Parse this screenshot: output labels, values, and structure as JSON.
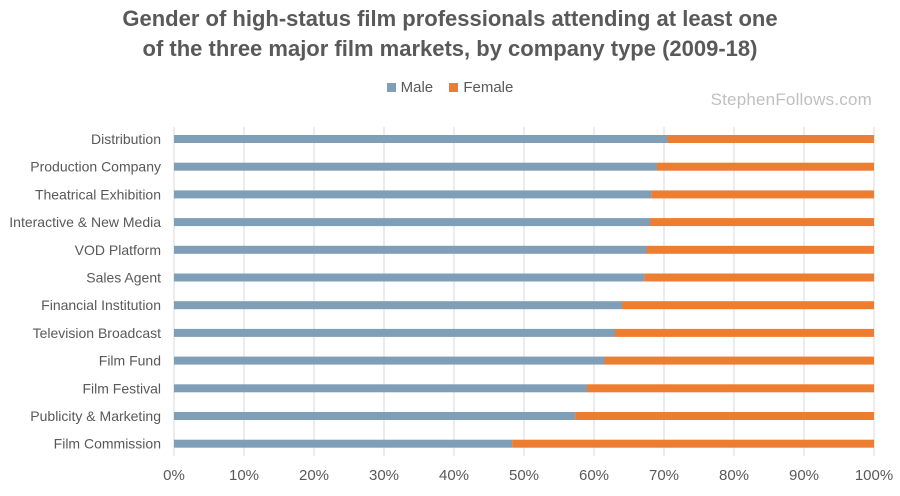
{
  "title_line1": "Gender of high-status film professionals attending at least one",
  "title_line2": "of the three major film markets, by company type (2009-18)",
  "watermark": "StephenFollows.com",
  "colors": {
    "male": "#7f9eb8",
    "female": "#ed7d31",
    "text": "#595959",
    "grid": "#d9d9d9"
  },
  "chart_data": {
    "type": "bar",
    "orientation": "horizontal",
    "stacked": "percent",
    "categories": [
      "Distribution",
      "Production Company",
      "Theatrical Exhibition",
      "Interactive & New Media",
      "VOD Platform",
      "Sales Agent",
      "Financial Institution",
      "Television Broadcast",
      "Film Fund",
      "Film Festival",
      "Publicity & Marketing",
      "Film Commission"
    ],
    "series": [
      {
        "name": "Male",
        "values": [
          70.5,
          69,
          68.2,
          68,
          67.5,
          67.2,
          64,
          63,
          61.5,
          59,
          57.3,
          48.3
        ]
      },
      {
        "name": "Female",
        "values": [
          29.5,
          31,
          31.8,
          32,
          32.5,
          32.8,
          36,
          37,
          38.5,
          41,
          42.7,
          51.7
        ]
      }
    ],
    "xlim": [
      0,
      100
    ],
    "xticks": [
      "0%",
      "10%",
      "20%",
      "30%",
      "40%",
      "50%",
      "60%",
      "70%",
      "80%",
      "90%",
      "100%"
    ],
    "legend_position": "top",
    "grid": true
  }
}
